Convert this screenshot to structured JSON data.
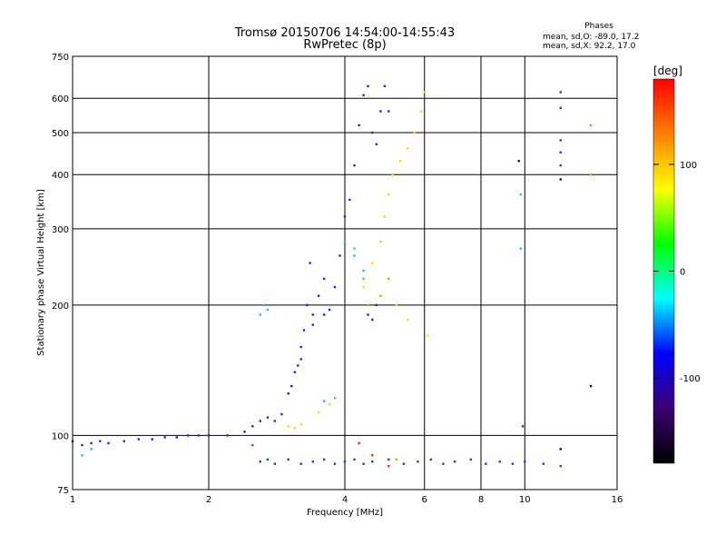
{
  "chart_data": {
    "type": "scatter",
    "title": "Tromsø 20150706 14:54:00-14:55:43",
    "subtitle": "RwPretec (8p)",
    "xlabel": "Frequency [MHz]",
    "ylabel": "Stationary phase Virtual Height [km]",
    "x_scale": "log",
    "y_scale": "log",
    "xlim": [
      1,
      16
    ],
    "ylim": [
      75,
      750
    ],
    "x_ticks": [
      "1",
      "2",
      "4",
      "6",
      "8",
      "10",
      "16"
    ],
    "y_ticks": [
      "75",
      "100",
      "200",
      "300",
      "400",
      "500",
      "600",
      "750"
    ],
    "grid": true,
    "phase_box": {
      "title": "Phases",
      "line_o": "mean, sd,O: -89.0, 17.2",
      "line_x": "mean, sd,X:  92.2, 17.0"
    },
    "colorbar": {
      "label": "[deg]",
      "range": [
        -180,
        180
      ],
      "ticks": [
        "100",
        "0",
        "-100"
      ],
      "colors": [
        "#000000",
        "#3a0070",
        "#0000ff",
        "#00ffff",
        "#00ff00",
        "#ffff00",
        "#ff8000",
        "#ff0000"
      ]
    },
    "series": [
      {
        "color_group": "blue",
        "color": "#1530d8",
        "points": [
          [
            1.0,
            97
          ],
          [
            1.05,
            95
          ],
          [
            1.1,
            96
          ],
          [
            1.15,
            97
          ],
          [
            1.2,
            96
          ],
          [
            1.3,
            97
          ],
          [
            1.4,
            98
          ],
          [
            1.5,
            98
          ],
          [
            1.6,
            99
          ],
          [
            1.7,
            99
          ],
          [
            1.8,
            100
          ],
          [
            1.9,
            100
          ],
          [
            2.0,
            100
          ],
          [
            2.2,
            100
          ],
          [
            2.4,
            102
          ],
          [
            2.5,
            105
          ],
          [
            2.6,
            108
          ],
          [
            2.7,
            110
          ],
          [
            2.8,
            108
          ],
          [
            2.9,
            112
          ],
          [
            3.0,
            125
          ],
          [
            3.05,
            130
          ],
          [
            3.1,
            140
          ],
          [
            3.15,
            145
          ],
          [
            3.2,
            160
          ],
          [
            3.25,
            175
          ],
          [
            3.3,
            200
          ],
          [
            3.35,
            250
          ],
          [
            3.4,
            190
          ],
          [
            3.5,
            210
          ],
          [
            3.6,
            230
          ],
          [
            3.7,
            195
          ],
          [
            3.8,
            220
          ],
          [
            3.9,
            260
          ],
          [
            4.0,
            320
          ],
          [
            4.1,
            350
          ],
          [
            4.2,
            420
          ],
          [
            4.3,
            520
          ],
          [
            4.4,
            610
          ],
          [
            4.5,
            640
          ],
          [
            4.6,
            500
          ],
          [
            4.7,
            470
          ],
          [
            4.8,
            560
          ],
          [
            4.9,
            640
          ],
          [
            5.0,
            560
          ],
          [
            4.5,
            190
          ],
          [
            4.6,
            185
          ],
          [
            4.7,
            200
          ],
          [
            3.6,
            190
          ],
          [
            3.4,
            180
          ],
          [
            3.2,
            150
          ]
        ]
      },
      {
        "color_group": "cyan",
        "color": "#20c0e0",
        "points": [
          [
            1.05,
            90
          ],
          [
            1.1,
            93
          ],
          [
            2.6,
            190
          ],
          [
            2.65,
            200
          ],
          [
            2.7,
            195
          ],
          [
            4.0,
            280
          ],
          [
            4.2,
            260
          ],
          [
            4.4,
            240
          ],
          [
            9.8,
            360
          ],
          [
            9.8,
            270
          ],
          [
            3.6,
            120
          ]
        ]
      },
      {
        "color_group": "yellow",
        "color": "#f0e000",
        "points": [
          [
            3.0,
            105
          ],
          [
            3.1,
            104
          ],
          [
            3.2,
            106
          ],
          [
            3.5,
            113
          ],
          [
            3.7,
            118
          ],
          [
            4.4,
            220
          ],
          [
            4.6,
            250
          ],
          [
            4.8,
            280
          ],
          [
            4.9,
            320
          ],
          [
            5.0,
            360
          ],
          [
            5.1,
            400
          ],
          [
            5.3,
            430
          ],
          [
            5.5,
            460
          ],
          [
            5.7,
            500
          ],
          [
            5.9,
            560
          ],
          [
            6.0,
            620
          ],
          [
            5.2,
            200
          ],
          [
            5.5,
            185
          ],
          [
            6.1,
            170
          ]
        ]
      },
      {
        "color_group": "green",
        "color": "#40e040",
        "points": [
          [
            4.2,
            270
          ],
          [
            4.4,
            230
          ],
          [
            14.0,
            520
          ],
          [
            3.8,
            122
          ]
        ]
      },
      {
        "color_group": "orange",
        "color": "#ff9000",
        "points": [
          [
            4.5,
            200
          ],
          [
            4.8,
            210
          ],
          [
            5.0,
            230
          ],
          [
            14.0,
            400
          ],
          [
            5.2,
            88
          ]
        ]
      },
      {
        "color_group": "red",
        "color": "#ff2020",
        "points": [
          [
            2.5,
            95
          ],
          [
            4.3,
            96
          ],
          [
            4.6,
            90
          ],
          [
            5.0,
            85
          ]
        ]
      },
      {
        "color_group": "dark",
        "color": "#2a0060",
        "points": [
          [
            12.0,
            390
          ],
          [
            12.0,
            93
          ],
          [
            14.0,
            130
          ],
          [
            9.7,
            430
          ]
        ]
      },
      {
        "color_group": "lower-band",
        "color": "#1a40e0",
        "points": [
          [
            2.6,
            87
          ],
          [
            2.7,
            88
          ],
          [
            2.8,
            86
          ],
          [
            3.0,
            88
          ],
          [
            3.2,
            86
          ],
          [
            3.4,
            87
          ],
          [
            3.6,
            88
          ],
          [
            3.8,
            86
          ],
          [
            4.0,
            87
          ],
          [
            4.2,
            88
          ],
          [
            4.4,
            86
          ],
          [
            4.6,
            87
          ],
          [
            5.0,
            88
          ],
          [
            5.4,
            86
          ],
          [
            5.8,
            87
          ],
          [
            6.2,
            88
          ],
          [
            6.6,
            86
          ],
          [
            7.0,
            87
          ],
          [
            7.6,
            88
          ],
          [
            8.2,
            86
          ],
          [
            8.8,
            87
          ],
          [
            9.4,
            86
          ],
          [
            10.0,
            87
          ],
          [
            11.0,
            86
          ],
          [
            12.0,
            85
          ],
          [
            9.9,
            105
          ],
          [
            12.0,
            620
          ],
          [
            12.0,
            570
          ],
          [
            12.0,
            480
          ],
          [
            12.0,
            450
          ],
          [
            12.0,
            420
          ]
        ]
      }
    ]
  }
}
